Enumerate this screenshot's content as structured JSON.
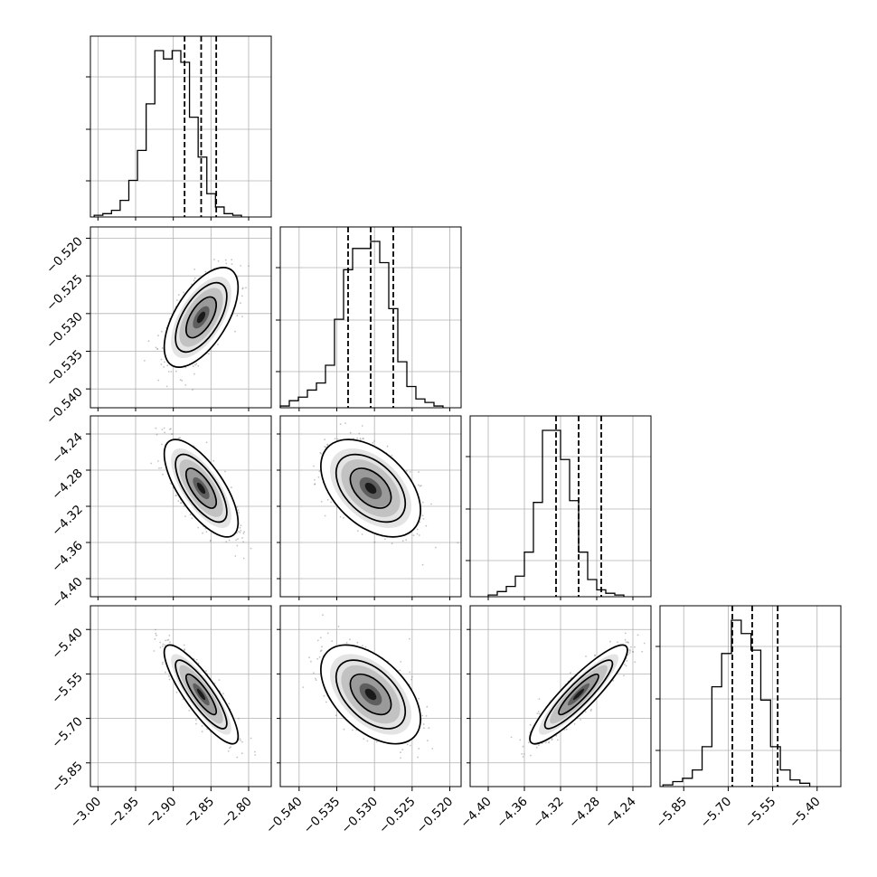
{
  "chart_data": {
    "type": "corner",
    "grid": true,
    "parameters": [
      {
        "range": [
          -3.01,
          -2.77
        ],
        "ticks": [
          "−3.00",
          "−2.95",
          "−2.90",
          "−2.85",
          "−2.80"
        ],
        "tick_values": [
          -3.0,
          -2.95,
          -2.9,
          -2.85,
          -2.8
        ],
        "quantiles": [
          -2.885,
          -2.863,
          -2.843
        ],
        "hist": {
          "edges_start": -3.005,
          "bin_width": 0.0115,
          "counts": [
            1,
            2,
            4,
            10,
            22,
            40,
            68,
            100,
            95,
            100,
            93,
            60,
            36,
            14,
            6,
            2,
            1
          ]
        }
      },
      {
        "range": [
          -0.5425,
          -0.5185
        ],
        "ticks": [
          "−0.540",
          "−0.535",
          "−0.530",
          "−0.525",
          "−0.520"
        ],
        "tick_values": [
          -0.54,
          -0.535,
          -0.53,
          -0.525,
          -0.52
        ],
        "quantiles": [
          -0.5335,
          -0.5305,
          -0.5275
        ],
        "hist": {
          "edges_start": -0.5425,
          "bin_width": 0.0012,
          "counts": [
            1,
            4,
            6,
            10,
            14,
            24,
            50,
            78,
            90,
            90,
            94,
            82,
            56,
            26,
            12,
            5,
            3,
            1
          ]
        }
      },
      {
        "range": [
          -4.42,
          -4.22
        ],
        "ticks": [
          "−4.40",
          "−4.36",
          "−4.32",
          "−4.28",
          "−4.24"
        ],
        "tick_values": [
          -4.4,
          -4.36,
          -4.32,
          -4.28,
          -4.24
        ],
        "quantiles": [
          -4.325,
          -4.3,
          -4.275
        ],
        "hist": {
          "edges_start": -4.4,
          "bin_width": 0.01,
          "counts": [
            1,
            3,
            6,
            12,
            26,
            55,
            97,
            97,
            80,
            56,
            26,
            10,
            4,
            2,
            1
          ]
        }
      },
      {
        "range": [
          -5.93,
          -5.32
        ],
        "ticks": [
          "−5.85",
          "−5.70",
          "−5.55",
          "−5.40"
        ],
        "tick_values": [
          -5.85,
          -5.7,
          -5.55,
          -5.4
        ],
        "quantiles": [
          -5.686,
          -5.619,
          -5.533
        ],
        "hist": {
          "edges_start": -5.92,
          "bin_width": 0.033,
          "counts": [
            1,
            3,
            5,
            10,
            24,
            60,
            80,
            100,
            92,
            82,
            52,
            24,
            10,
            4,
            2
          ]
        }
      }
    ],
    "pairs": [
      {
        "x": 0,
        "y": 1,
        "mean": [
          -2.863,
          -0.5305
        ],
        "sd": [
          0.02,
          0.0027
        ],
        "corr": 0.6
      },
      {
        "x": 0,
        "y": 2,
        "mean": [
          -2.863,
          -4.3
        ],
        "sd": [
          0.02,
          0.022
        ],
        "corr": -0.7
      },
      {
        "x": 1,
        "y": 2,
        "mean": [
          -0.5305,
          -4.3
        ],
        "sd": [
          0.0027,
          0.022
        ],
        "corr": -0.45
      },
      {
        "x": 0,
        "y": 3,
        "mean": [
          -2.863,
          -5.619
        ],
        "sd": [
          0.02,
          0.068
        ],
        "corr": -0.85
      },
      {
        "x": 1,
        "y": 3,
        "mean": [
          -0.5305,
          -5.619
        ],
        "sd": [
          0.0027,
          0.068
        ],
        "corr": -0.5
      },
      {
        "x": 2,
        "y": 3,
        "mean": [
          -4.3,
          -5.619
        ],
        "sd": [
          0.022,
          0.068
        ],
        "corr": 0.9
      }
    ]
  }
}
